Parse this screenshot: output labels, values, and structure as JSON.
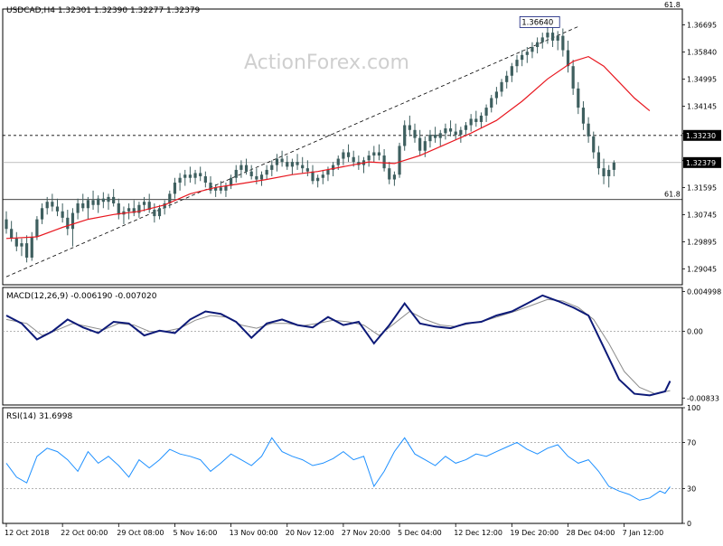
{
  "watermark": "ActionForex.com",
  "colors": {
    "candle": "#3e5f5f",
    "ma": "#e8171f",
    "macd": "#0d1a78",
    "signal": "#8c8c8c",
    "rsi": "#1e90ff",
    "level": "#000000"
  },
  "price_panel": {
    "header": "USDCAD,H4  1.32301 1.32390 1.32277 1.32379",
    "ylim": [
      1.2855,
      1.3719
    ],
    "ticks": [
      "1.36695",
      "1.35840",
      "1.34995",
      "1.34145",
      "1.33290",
      "1.32445",
      "1.31595",
      "1.30745",
      "1.29895",
      "1.29045"
    ],
    "tick_values": [
      1.36695,
      1.3584,
      1.34995,
      1.34145,
      1.3329,
      1.32445,
      1.31595,
      1.30745,
      1.29895,
      1.29045
    ],
    "high_label": "1.36640",
    "high_value": 1.3664,
    "level_top": {
      "label": "61.8",
      "value": 1.3719
    },
    "level_bottom": {
      "label": "61.8",
      "value": 1.3122
    },
    "resistance": {
      "label": "1.33230",
      "value": 1.3323
    },
    "current": {
      "label": "1.32379",
      "value": 1.32379
    }
  },
  "macd_panel": {
    "header": "MACD(12,26,9) -0.006190 -0.007020",
    "ylim": [
      -0.0092,
      0.0055
    ],
    "ticks": [
      "0.004998",
      "0.00",
      "-0.00833"
    ],
    "tick_values": [
      0.004998,
      0.0,
      -0.00833
    ]
  },
  "rsi_panel": {
    "header": "RSI(14) 31.6998",
    "ylim": [
      0,
      100
    ],
    "ticks": [
      "100",
      "70",
      "30",
      "0"
    ],
    "tick_values": [
      100,
      70,
      30,
      0
    ]
  },
  "x_axis": {
    "labels": [
      "12 Oct 2018",
      "22 Oct 00:00",
      "29 Oct 08:00",
      "5 Nov 16:00",
      "13 Nov 00:00",
      "20 Nov 12:00",
      "27 Nov 20:00",
      "5 Dec 04:00",
      "12 Dec 12:00",
      "19 Dec 20:00",
      "28 Dec 04:00",
      "7 Jan 12:00"
    ],
    "positions": [
      0,
      11,
      22,
      33,
      44,
      55,
      66,
      77,
      88,
      99,
      110,
      121
    ]
  },
  "chart_data": {
    "type": "line",
    "title": "USDCAD,H4",
    "x": [
      "12 Oct 2018",
      "22 Oct 00:00",
      "29 Oct 08:00",
      "5 Nov 16:00",
      "13 Nov 00:00",
      "20 Nov 12:00",
      "27 Nov 20:00",
      "5 Dec 04:00",
      "12 Dec 12:00",
      "19 Dec 20:00",
      "28 Dec 04:00",
      "7 Jan 12:00"
    ],
    "x_index": [
      0,
      11,
      22,
      33,
      44,
      55,
      66,
      77,
      88,
      99,
      110,
      121
    ],
    "series": [
      {
        "name": "USDCAD close",
        "values": [
          1.301,
          1.307,
          1.3095,
          1.312,
          1.319,
          1.3185,
          1.324,
          1.329,
          1.337,
          1.36,
          1.363,
          1.3225
        ]
      },
      {
        "name": "MACD(12,26,9)",
        "values": [
          0.001,
          -0.0005,
          0.002,
          0.0,
          0.004,
          0.0,
          0.003,
          0.0,
          0.001,
          0.002,
          0.003,
          -0.008
        ]
      },
      {
        "name": "RSI(14)",
        "values": [
          45,
          55,
          58,
          55,
          65,
          50,
          56,
          60,
          52,
          58,
          65,
          28
        ]
      }
    ],
    "annotations": [
      "1.36640",
      "61.8",
      "61.8",
      "1.33230",
      "1.32379"
    ]
  },
  "candles": [
    [
      1.306,
      1.3085,
      1.3015,
      1.303
    ],
    [
      1.303,
      1.3055,
      1.299,
      1.3
    ],
    [
      1.3,
      1.302,
      1.296,
      1.2975
    ],
    [
      1.2975,
      1.3,
      1.2945,
      1.2985
    ],
    [
      1.2985,
      1.301,
      1.2925,
      1.294
    ],
    [
      1.294,
      1.302,
      1.293,
      1.3005
    ],
    [
      1.3005,
      1.307,
      1.2995,
      1.306
    ],
    [
      1.306,
      1.311,
      1.3045,
      1.3095
    ],
    [
      1.3095,
      1.313,
      1.3075,
      1.3115
    ],
    [
      1.3115,
      1.314,
      1.3085,
      1.31
    ],
    [
      1.31,
      1.3125,
      1.307,
      1.3085
    ],
    [
      1.3085,
      1.311,
      1.305,
      1.3065
    ],
    [
      1.3065,
      1.309,
      1.301,
      1.303
    ],
    [
      1.303,
      1.3095,
      1.2975,
      1.308
    ],
    [
      1.308,
      1.3125,
      1.306,
      1.311
    ],
    [
      1.311,
      1.314,
      1.3085,
      1.3095
    ],
    [
      1.3095,
      1.313,
      1.306,
      1.312
    ],
    [
      1.312,
      1.315,
      1.309,
      1.3105
    ],
    [
      1.3105,
      1.3135,
      1.308,
      1.3125
    ],
    [
      1.3125,
      1.3145,
      1.3095,
      1.3115
    ],
    [
      1.3115,
      1.314,
      1.309,
      1.313
    ],
    [
      1.313,
      1.3155,
      1.31,
      1.311
    ],
    [
      1.311,
      1.3125,
      1.306,
      1.3075
    ],
    [
      1.3075,
      1.31,
      1.3045,
      1.3085
    ],
    [
      1.3085,
      1.311,
      1.306,
      1.3095
    ],
    [
      1.3095,
      1.312,
      1.307,
      1.308
    ],
    [
      1.308,
      1.3115,
      1.3065,
      1.3105
    ],
    [
      1.3105,
      1.313,
      1.3085,
      1.3115
    ],
    [
      1.3115,
      1.314,
      1.308,
      1.309
    ],
    [
      1.309,
      1.311,
      1.305,
      1.307
    ],
    [
      1.307,
      1.3105,
      1.306,
      1.3095
    ],
    [
      1.3095,
      1.312,
      1.3075,
      1.311
    ],
    [
      1.311,
      1.315,
      1.3095,
      1.314
    ],
    [
      1.314,
      1.319,
      1.3125,
      1.3175
    ],
    [
      1.3175,
      1.3205,
      1.315,
      1.319
    ],
    [
      1.319,
      1.3215,
      1.3165,
      1.32
    ],
    [
      1.32,
      1.3225,
      1.3175,
      1.319
    ],
    [
      1.319,
      1.3215,
      1.317,
      1.3205
    ],
    [
      1.3205,
      1.3225,
      1.318,
      1.3195
    ],
    [
      1.3195,
      1.321,
      1.316,
      1.3175
    ],
    [
      1.3175,
      1.3195,
      1.314,
      1.315
    ],
    [
      1.315,
      1.317,
      1.313,
      1.316
    ],
    [
      1.316,
      1.318,
      1.314,
      1.315
    ],
    [
      1.315,
      1.3175,
      1.313,
      1.3165
    ],
    [
      1.3165,
      1.32,
      1.3155,
      1.319
    ],
    [
      1.319,
      1.323,
      1.3175,
      1.3215
    ],
    [
      1.3215,
      1.3245,
      1.319,
      1.323
    ],
    [
      1.323,
      1.325,
      1.32,
      1.321
    ],
    [
      1.321,
      1.323,
      1.3185,
      1.3195
    ],
    [
      1.3195,
      1.322,
      1.317,
      1.3185
    ],
    [
      1.3185,
      1.321,
      1.3165,
      1.32
    ],
    [
      1.32,
      1.323,
      1.3185,
      1.3215
    ],
    [
      1.3215,
      1.3245,
      1.3195,
      1.323
    ],
    [
      1.323,
      1.3265,
      1.321,
      1.325
    ],
    [
      1.325,
      1.3275,
      1.3225,
      1.324
    ],
    [
      1.324,
      1.326,
      1.3215,
      1.3225
    ],
    [
      1.3225,
      1.325,
      1.32,
      1.324
    ],
    [
      1.324,
      1.3265,
      1.3215,
      1.323
    ],
    [
      1.323,
      1.3255,
      1.3205,
      1.322
    ],
    [
      1.322,
      1.3245,
      1.3195,
      1.321
    ],
    [
      1.321,
      1.323,
      1.317,
      1.318
    ],
    [
      1.318,
      1.32,
      1.316,
      1.319
    ],
    [
      1.319,
      1.3215,
      1.317,
      1.32
    ],
    [
      1.32,
      1.3225,
      1.318,
      1.3215
    ],
    [
      1.3215,
      1.324,
      1.3195,
      1.323
    ],
    [
      1.323,
      1.326,
      1.3215,
      1.325
    ],
    [
      1.325,
      1.328,
      1.323,
      1.327
    ],
    [
      1.327,
      1.3295,
      1.324,
      1.3255
    ],
    [
      1.3255,
      1.3275,
      1.3225,
      1.324
    ],
    [
      1.324,
      1.326,
      1.3215,
      1.323
    ],
    [
      1.323,
      1.3255,
      1.3205,
      1.3245
    ],
    [
      1.3245,
      1.3275,
      1.3225,
      1.326
    ],
    [
      1.326,
      1.329,
      1.324,
      1.327
    ],
    [
      1.327,
      1.3295,
      1.3245,
      1.326
    ],
    [
      1.326,
      1.328,
      1.321,
      1.322
    ],
    [
      1.322,
      1.324,
      1.317,
      1.3185
    ],
    [
      1.3185,
      1.321,
      1.3165,
      1.32
    ],
    [
      1.32,
      1.33,
      1.319,
      1.329
    ],
    [
      1.329,
      1.337,
      1.3275,
      1.3355
    ],
    [
      1.3355,
      1.3385,
      1.332,
      1.334
    ],
    [
      1.334,
      1.336,
      1.33,
      1.3315
    ],
    [
      1.3315,
      1.334,
      1.326,
      1.3275
    ],
    [
      1.3275,
      1.332,
      1.3255,
      1.3305
    ],
    [
      1.3305,
      1.334,
      1.3285,
      1.3325
    ],
    [
      1.3325,
      1.335,
      1.33,
      1.3315
    ],
    [
      1.3315,
      1.334,
      1.329,
      1.333
    ],
    [
      1.333,
      1.336,
      1.331,
      1.3345
    ],
    [
      1.3345,
      1.337,
      1.332,
      1.3335
    ],
    [
      1.3335,
      1.336,
      1.331,
      1.3325
    ],
    [
      1.3325,
      1.335,
      1.33,
      1.334
    ],
    [
      1.334,
      1.3365,
      1.332,
      1.3355
    ],
    [
      1.3355,
      1.339,
      1.3335,
      1.3375
    ],
    [
      1.3375,
      1.34,
      1.335,
      1.3365
    ],
    [
      1.3365,
      1.3395,
      1.3345,
      1.3385
    ],
    [
      1.3385,
      1.342,
      1.3365,
      1.341
    ],
    [
      1.341,
      1.345,
      1.3395,
      1.344
    ],
    [
      1.344,
      1.3475,
      1.342,
      1.346
    ],
    [
      1.346,
      1.35,
      1.3445,
      1.349
    ],
    [
      1.349,
      1.3525,
      1.347,
      1.351
    ],
    [
      1.351,
      1.355,
      1.349,
      1.354
    ],
    [
      1.354,
      1.3575,
      1.352,
      1.356
    ],
    [
      1.356,
      1.359,
      1.354,
      1.3575
    ],
    [
      1.3575,
      1.36,
      1.355,
      1.3585
    ],
    [
      1.3585,
      1.3615,
      1.3565,
      1.36
    ],
    [
      1.36,
      1.363,
      1.358,
      1.3615
    ],
    [
      1.3615,
      1.3645,
      1.3595,
      1.363
    ],
    [
      1.363,
      1.3664,
      1.361,
      1.3645
    ],
    [
      1.3645,
      1.366,
      1.36,
      1.362
    ],
    [
      1.362,
      1.365,
      1.359,
      1.3635
    ],
    [
      1.3635,
      1.3658,
      1.357,
      1.359
    ],
    [
      1.359,
      1.362,
      1.352,
      1.354
    ],
    [
      1.354,
      1.356,
      1.345,
      1.347
    ],
    [
      1.347,
      1.349,
      1.339,
      1.341
    ],
    [
      1.341,
      1.343,
      1.334,
      1.336
    ],
    [
      1.336,
      1.338,
      1.33,
      1.332
    ],
    [
      1.332,
      1.3335,
      1.325,
      1.327
    ],
    [
      1.327,
      1.329,
      1.32,
      1.322
    ],
    [
      1.322,
      1.325,
      1.317,
      1.3195
    ],
    [
      1.3195,
      1.323,
      1.316,
      1.3215
    ],
    [
      1.3215,
      1.3245,
      1.3195,
      1.3238
    ]
  ],
  "ma": [
    [
      0,
      1.3
    ],
    [
      6,
      1.3005
    ],
    [
      11,
      1.3035
    ],
    [
      16,
      1.306
    ],
    [
      21,
      1.3075
    ],
    [
      26,
      1.3085
    ],
    [
      31,
      1.3105
    ],
    [
      36,
      1.314
    ],
    [
      41,
      1.316
    ],
    [
      46,
      1.3172
    ],
    [
      51,
      1.3185
    ],
    [
      56,
      1.32
    ],
    [
      61,
      1.321
    ],
    [
      66,
      1.3225
    ],
    [
      71,
      1.324
    ],
    [
      76,
      1.3235
    ],
    [
      81,
      1.326
    ],
    [
      86,
      1.3295
    ],
    [
      91,
      1.333
    ],
    [
      96,
      1.337
    ],
    [
      101,
      1.343
    ],
    [
      106,
      1.35
    ],
    [
      111,
      1.3555
    ],
    [
      114,
      1.357
    ],
    [
      117,
      1.354
    ],
    [
      120,
      1.349
    ],
    [
      123,
      1.344
    ],
    [
      126,
      1.34
    ]
  ],
  "macd_line": [
    [
      0,
      0.002
    ],
    [
      3,
      0.001
    ],
    [
      6,
      -0.001
    ],
    [
      9,
      0.0
    ],
    [
      12,
      0.0015
    ],
    [
      15,
      0.0005
    ],
    [
      18,
      -0.0002
    ],
    [
      21,
      0.0012
    ],
    [
      24,
      0.001
    ],
    [
      27,
      -0.0005
    ],
    [
      30,
      0.0001
    ],
    [
      33,
      -0.0002
    ],
    [
      36,
      0.0015
    ],
    [
      39,
      0.0025
    ],
    [
      42,
      0.0022
    ],
    [
      45,
      0.0012
    ],
    [
      48,
      -0.0008
    ],
    [
      51,
      0.001
    ],
    [
      54,
      0.0015
    ],
    [
      57,
      0.0008
    ],
    [
      60,
      0.0005
    ],
    [
      63,
      0.0018
    ],
    [
      66,
      0.0008
    ],
    [
      69,
      0.0012
    ],
    [
      72,
      -0.0015
    ],
    [
      75,
      0.0008
    ],
    [
      78,
      0.0035
    ],
    [
      81,
      0.001
    ],
    [
      84,
      0.0006
    ],
    [
      87,
      0.0004
    ],
    [
      90,
      0.001
    ],
    [
      93,
      0.0012
    ],
    [
      96,
      0.002
    ],
    [
      99,
      0.0025
    ],
    [
      102,
      0.0035
    ],
    [
      105,
      0.0045
    ],
    [
      108,
      0.0038
    ],
    [
      111,
      0.003
    ],
    [
      114,
      0.002
    ],
    [
      117,
      -0.002
    ],
    [
      120,
      -0.006
    ],
    [
      123,
      -0.0078
    ],
    [
      126,
      -0.008
    ],
    [
      129,
      -0.0075
    ],
    [
      130,
      -0.0062
    ]
  ],
  "signal_line": [
    [
      0,
      0.0015
    ],
    [
      4,
      0.001
    ],
    [
      7,
      -0.0005
    ],
    [
      10,
      0.0002
    ],
    [
      13,
      0.001
    ],
    [
      16,
      0.0006
    ],
    [
      19,
      0.0002
    ],
    [
      22,
      0.001
    ],
    [
      25,
      0.0008
    ],
    [
      28,
      0.0
    ],
    [
      31,
      0.0
    ],
    [
      34,
      0.0004
    ],
    [
      37,
      0.0014
    ],
    [
      40,
      0.002
    ],
    [
      43,
      0.0018
    ],
    [
      46,
      0.0008
    ],
    [
      49,
      0.0004
    ],
    [
      52,
      0.001
    ],
    [
      55,
      0.001
    ],
    [
      58,
      0.0007
    ],
    [
      61,
      0.001
    ],
    [
      64,
      0.0014
    ],
    [
      67,
      0.0012
    ],
    [
      70,
      0.0008
    ],
    [
      73,
      -0.0005
    ],
    [
      76,
      0.001
    ],
    [
      79,
      0.0025
    ],
    [
      82,
      0.0015
    ],
    [
      85,
      0.0008
    ],
    [
      88,
      0.0006
    ],
    [
      91,
      0.001
    ],
    [
      94,
      0.0014
    ],
    [
      97,
      0.002
    ],
    [
      100,
      0.0026
    ],
    [
      103,
      0.0033
    ],
    [
      106,
      0.004
    ],
    [
      109,
      0.0038
    ],
    [
      112,
      0.003
    ],
    [
      115,
      0.0015
    ],
    [
      118,
      -0.0015
    ],
    [
      121,
      -0.005
    ],
    [
      124,
      -0.007
    ],
    [
      127,
      -0.0078
    ],
    [
      130,
      -0.0074
    ]
  ],
  "rsi_line": [
    [
      0,
      52
    ],
    [
      2,
      40
    ],
    [
      4,
      35
    ],
    [
      6,
      58
    ],
    [
      8,
      65
    ],
    [
      10,
      62
    ],
    [
      12,
      55
    ],
    [
      14,
      45
    ],
    [
      16,
      62
    ],
    [
      18,
      52
    ],
    [
      20,
      58
    ],
    [
      22,
      50
    ],
    [
      24,
      40
    ],
    [
      26,
      55
    ],
    [
      28,
      48
    ],
    [
      30,
      55
    ],
    [
      32,
      64
    ],
    [
      34,
      60
    ],
    [
      36,
      58
    ],
    [
      38,
      55
    ],
    [
      40,
      45
    ],
    [
      42,
      52
    ],
    [
      44,
      60
    ],
    [
      46,
      55
    ],
    [
      48,
      50
    ],
    [
      50,
      58
    ],
    [
      52,
      74
    ],
    [
      54,
      62
    ],
    [
      56,
      58
    ],
    [
      58,
      55
    ],
    [
      60,
      50
    ],
    [
      62,
      52
    ],
    [
      64,
      56
    ],
    [
      66,
      62
    ],
    [
      68,
      55
    ],
    [
      70,
      58
    ],
    [
      72,
      32
    ],
    [
      74,
      45
    ],
    [
      76,
      62
    ],
    [
      78,
      74
    ],
    [
      80,
      60
    ],
    [
      82,
      55
    ],
    [
      84,
      50
    ],
    [
      86,
      58
    ],
    [
      88,
      52
    ],
    [
      90,
      55
    ],
    [
      92,
      60
    ],
    [
      94,
      58
    ],
    [
      96,
      62
    ],
    [
      98,
      66
    ],
    [
      100,
      70
    ],
    [
      102,
      64
    ],
    [
      104,
      60
    ],
    [
      106,
      65
    ],
    [
      108,
      68
    ],
    [
      110,
      58
    ],
    [
      112,
      52
    ],
    [
      114,
      55
    ],
    [
      116,
      45
    ],
    [
      118,
      32
    ],
    [
      120,
      28
    ],
    [
      122,
      25
    ],
    [
      124,
      20
    ],
    [
      126,
      22
    ],
    [
      128,
      28
    ],
    [
      129,
      26
    ],
    [
      130,
      31.7
    ]
  ]
}
